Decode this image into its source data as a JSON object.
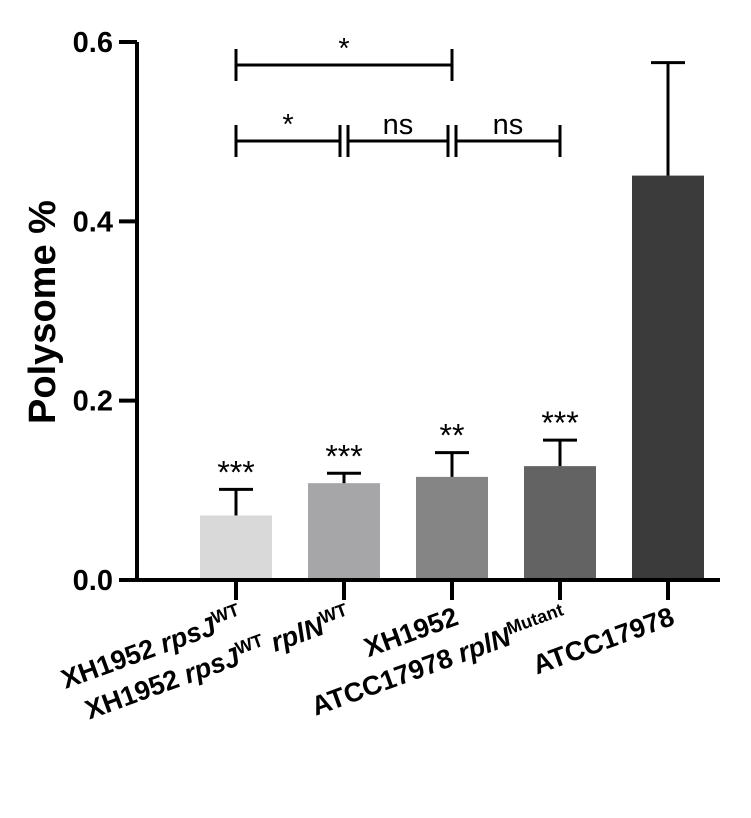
{
  "chart_data": {
    "type": "bar",
    "title": "",
    "xlabel": "",
    "ylabel": "Polysome %",
    "ylim": [
      0,
      0.6
    ],
    "yticks": [
      "0.0",
      "0.2",
      "0.4",
      "0.6"
    ],
    "grid": false,
    "legend": "none",
    "categories": [
      {
        "base": "XH1952 ",
        "italic": "rpsJ",
        "sup": "WT",
        "italic2": "",
        "sup2": ""
      },
      {
        "base": "XH1952 ",
        "italic": "rpsJ",
        "sup": "WT",
        "italic2": " rplN",
        "sup2": "WT"
      },
      {
        "base": "XH1952",
        "italic": "",
        "sup": "",
        "italic2": "",
        "sup2": ""
      },
      {
        "base": "ATCC17978 ",
        "italic": "rplN",
        "sup": "Mutant",
        "italic2": "",
        "sup2": ""
      },
      {
        "base": "ATCC17978",
        "italic": "",
        "sup": "",
        "italic2": "",
        "sup2": ""
      }
    ],
    "values": [
      0.072,
      0.108,
      0.115,
      0.127,
      0.451
    ],
    "errors": [
      0.029,
      0.011,
      0.027,
      0.029,
      0.126
    ],
    "colors": [
      "#d9d9d9",
      "#a6a6a8",
      "#858585",
      "#636363",
      "#3b3b3b"
    ],
    "bar_annotations": [
      "***",
      "***",
      "**",
      "***",
      ""
    ],
    "comparisons": [
      {
        "from": 0,
        "to": 2,
        "label": "*",
        "level": 2
      },
      {
        "from": 0,
        "to": 1,
        "label": "*",
        "level": 1
      },
      {
        "from": 1,
        "to": 2,
        "label": "ns",
        "level": 1
      },
      {
        "from": 2,
        "to": 3,
        "label": "ns",
        "level": 1
      }
    ]
  }
}
